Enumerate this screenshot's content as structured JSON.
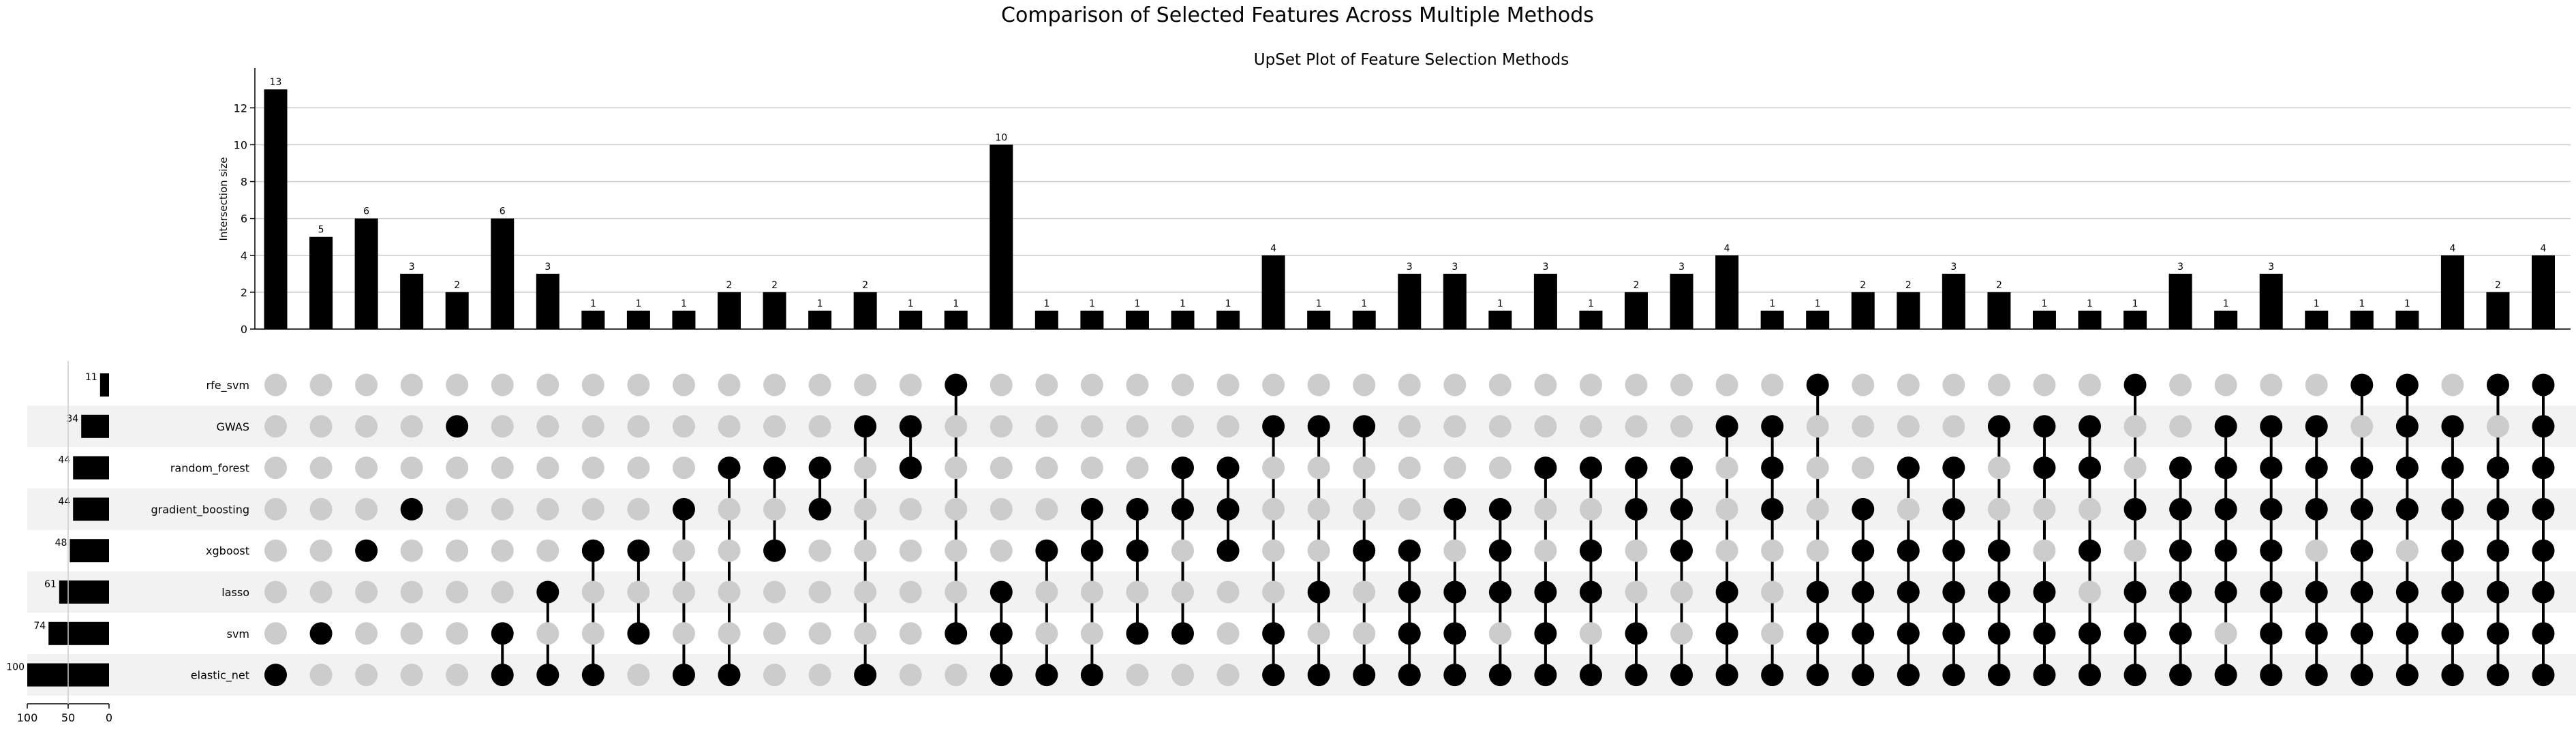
{
  "chart_data": {
    "type": "upset",
    "title": "Comparison of Selected Features Across Multiple Methods",
    "subtitle": "UpSet Plot of Feature Selection Methods",
    "ylabel": "Intersection size",
    "ylim": [
      0,
      13.6
    ],
    "yticks": [
      0,
      2,
      4,
      6,
      8,
      10,
      12
    ],
    "set_size_ticks": [
      100,
      50,
      0
    ],
    "grid": true,
    "colors": {
      "bar": "#000000",
      "active_dot": "#000000",
      "inactive_dot": "#cccccc",
      "row_shade": "#f2f2f2",
      "grid": "#cccccc"
    },
    "sets": [
      {
        "name": "rfe_svm",
        "size": 11
      },
      {
        "name": "GWAS",
        "size": 34
      },
      {
        "name": "random_forest",
        "size": 44
      },
      {
        "name": "gradient_boosting",
        "size": 44
      },
      {
        "name": "xgboost",
        "size": 48
      },
      {
        "name": "lasso",
        "size": 61
      },
      {
        "name": "svm",
        "size": 74
      },
      {
        "name": "elastic_net",
        "size": 100
      }
    ],
    "intersections": [
      {
        "value": 13,
        "members": [
          "elastic_net"
        ]
      },
      {
        "value": 5,
        "members": [
          "svm"
        ]
      },
      {
        "value": 6,
        "members": [
          "xgboost"
        ]
      },
      {
        "value": 3,
        "members": [
          "gradient_boosting"
        ]
      },
      {
        "value": 2,
        "members": [
          "GWAS"
        ]
      },
      {
        "value": 6,
        "members": [
          "svm",
          "elastic_net"
        ]
      },
      {
        "value": 3,
        "members": [
          "lasso",
          "elastic_net"
        ]
      },
      {
        "value": 1,
        "members": [
          "xgboost",
          "elastic_net"
        ]
      },
      {
        "value": 1,
        "members": [
          "xgboost",
          "svm"
        ]
      },
      {
        "value": 1,
        "members": [
          "gradient_boosting",
          "elastic_net"
        ]
      },
      {
        "value": 2,
        "members": [
          "random_forest",
          "elastic_net"
        ]
      },
      {
        "value": 2,
        "members": [
          "random_forest",
          "xgboost"
        ]
      },
      {
        "value": 1,
        "members": [
          "random_forest",
          "gradient_boosting"
        ]
      },
      {
        "value": 2,
        "members": [
          "GWAS",
          "elastic_net"
        ]
      },
      {
        "value": 1,
        "members": [
          "GWAS",
          "random_forest"
        ]
      },
      {
        "value": 1,
        "members": [
          "rfe_svm",
          "svm"
        ]
      },
      {
        "value": 10,
        "members": [
          "lasso",
          "svm",
          "elastic_net"
        ]
      },
      {
        "value": 1,
        "members": [
          "xgboost",
          "elastic_net"
        ]
      },
      {
        "value": 1,
        "members": [
          "gradient_boosting",
          "xgboost",
          "elastic_net"
        ]
      },
      {
        "value": 1,
        "members": [
          "gradient_boosting",
          "xgboost",
          "svm"
        ]
      },
      {
        "value": 1,
        "members": [
          "random_forest",
          "gradient_boosting",
          "svm"
        ]
      },
      {
        "value": 1,
        "members": [
          "random_forest",
          "gradient_boosting",
          "xgboost"
        ]
      },
      {
        "value": 4,
        "members": [
          "GWAS",
          "svm",
          "elastic_net"
        ]
      },
      {
        "value": 1,
        "members": [
          "GWAS",
          "lasso",
          "elastic_net"
        ]
      },
      {
        "value": 1,
        "members": [
          "GWAS",
          "xgboost",
          "elastic_net"
        ]
      },
      {
        "value": 3,
        "members": [
          "xgboost",
          "lasso",
          "svm",
          "elastic_net"
        ]
      },
      {
        "value": 3,
        "members": [
          "gradient_boosting",
          "lasso",
          "svm",
          "elastic_net"
        ]
      },
      {
        "value": 1,
        "members": [
          "gradient_boosting",
          "xgboost",
          "lasso",
          "elastic_net"
        ]
      },
      {
        "value": 3,
        "members": [
          "random_forest",
          "lasso",
          "svm",
          "elastic_net"
        ]
      },
      {
        "value": 1,
        "members": [
          "random_forest",
          "xgboost",
          "lasso",
          "elastic_net"
        ]
      },
      {
        "value": 2,
        "members": [
          "random_forest",
          "gradient_boosting",
          "svm",
          "elastic_net"
        ]
      },
      {
        "value": 3,
        "members": [
          "random_forest",
          "gradient_boosting",
          "xgboost",
          "elastic_net"
        ]
      },
      {
        "value": 4,
        "members": [
          "GWAS",
          "lasso",
          "svm",
          "elastic_net"
        ]
      },
      {
        "value": 1,
        "members": [
          "GWAS",
          "random_forest",
          "gradient_boosting",
          "elastic_net"
        ]
      },
      {
        "value": 1,
        "members": [
          "rfe_svm",
          "lasso",
          "svm",
          "elastic_net"
        ]
      },
      {
        "value": 2,
        "members": [
          "gradient_boosting",
          "xgboost",
          "lasso",
          "svm",
          "elastic_net"
        ]
      },
      {
        "value": 2,
        "members": [
          "random_forest",
          "xgboost",
          "lasso",
          "svm",
          "elastic_net"
        ]
      },
      {
        "value": 3,
        "members": [
          "random_forest",
          "gradient_boosting",
          "xgboost",
          "lasso",
          "svm",
          "elastic_net"
        ]
      },
      {
        "value": 2,
        "members": [
          "GWAS",
          "xgboost",
          "lasso",
          "svm",
          "elastic_net"
        ]
      },
      {
        "value": 1,
        "members": [
          "GWAS",
          "random_forest",
          "lasso",
          "svm",
          "elastic_net"
        ]
      },
      {
        "value": 1,
        "members": [
          "GWAS",
          "random_forest",
          "xgboost",
          "svm",
          "elastic_net"
        ]
      },
      {
        "value": 1,
        "members": [
          "rfe_svm",
          "gradient_boosting",
          "lasso",
          "svm",
          "elastic_net"
        ]
      },
      {
        "value": 3,
        "members": [
          "gradient_boosting",
          "xgboost",
          "lasso",
          "svm",
          "elastic_net",
          "random_forest"
        ]
      },
      {
        "value": 1,
        "members": [
          "GWAS",
          "random_forest",
          "gradient_boosting",
          "xgboost",
          "lasso",
          "elastic_net"
        ]
      },
      {
        "value": 3,
        "members": [
          "GWAS",
          "random_forest",
          "gradient_boosting",
          "xgboost",
          "lasso",
          "svm",
          "elastic_net"
        ]
      },
      {
        "value": 1,
        "members": [
          "GWAS",
          "random_forest",
          "gradient_boosting",
          "lasso",
          "svm",
          "elastic_net"
        ]
      },
      {
        "value": 1,
        "members": [
          "rfe_svm",
          "random_forest",
          "gradient_boosting",
          "xgboost",
          "lasso",
          "svm",
          "elastic_net"
        ]
      },
      {
        "value": 1,
        "members": [
          "rfe_svm",
          "GWAS",
          "random_forest",
          "gradient_boosting",
          "lasso",
          "svm",
          "elastic_net"
        ]
      },
      {
        "value": 4,
        "members": [
          "GWAS",
          "random_forest",
          "gradient_boosting",
          "xgboost",
          "lasso",
          "svm",
          "elastic_net"
        ]
      },
      {
        "value": 2,
        "members": [
          "rfe_svm",
          "random_forest",
          "gradient_boosting",
          "xgboost",
          "lasso",
          "svm",
          "elastic_net"
        ]
      },
      {
        "value": 4,
        "members": [
          "rfe_svm",
          "GWAS",
          "random_forest",
          "gradient_boosting",
          "xgboost",
          "lasso",
          "svm",
          "elastic_net"
        ]
      }
    ]
  }
}
